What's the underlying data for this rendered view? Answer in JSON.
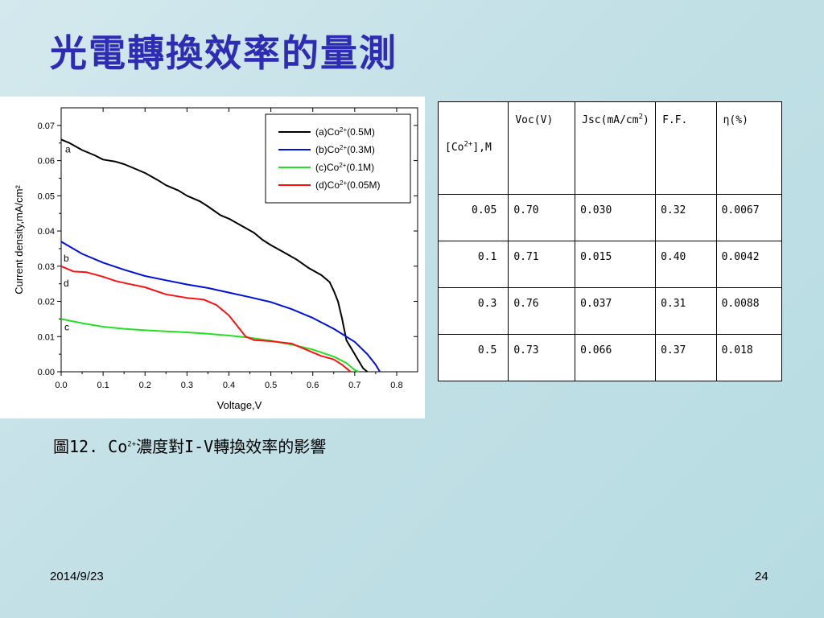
{
  "slide": {
    "title": "光電轉換效率的量測",
    "caption": {
      "prefix": "圖12. Co",
      "sup": "2+",
      "suffix": "濃度對I-V轉換效率的影響"
    },
    "footer_date": "2014/9/23",
    "page_number": "24"
  },
  "table": {
    "headers": [
      {
        "pre": "[Co",
        "sup": "2+",
        "post": "],M"
      },
      {
        "pre": "Voc(V)",
        "sup": "",
        "post": ""
      },
      {
        "pre": "Jsc(mA/cm",
        "sup": "2",
        "post": ")"
      },
      {
        "pre": "F.F.",
        "sup": "",
        "post": ""
      },
      {
        "pre": "η(%)",
        "sup": "",
        "post": ""
      }
    ],
    "rows": [
      [
        "0.05",
        "0.70",
        "0.030",
        "0.32",
        "0.0067"
      ],
      [
        "0.1",
        "0.71",
        "0.015",
        "0.40",
        "0.0042"
      ],
      [
        "0.3",
        "0.76",
        "0.037",
        "0.31",
        "0.0088"
      ],
      [
        "0.5",
        "0.73",
        "0.066",
        "0.37",
        "0.018"
      ]
    ]
  },
  "chart_data": {
    "type": "line",
    "title": "",
    "xlabel": "Voltage,V",
    "ylabel": "Current density,mA/cm²",
    "xlim": [
      0.0,
      0.85
    ],
    "ylim": [
      0.0,
      0.075
    ],
    "x_ticks": [
      "0.0",
      "0.1",
      "0.2",
      "0.3",
      "0.4",
      "0.5",
      "0.6",
      "0.7",
      "0.8"
    ],
    "y_ticks": [
      "0.00",
      "0.01",
      "0.02",
      "0.03",
      "0.04",
      "0.05",
      "0.06",
      "0.07"
    ],
    "grid": false,
    "legend_position": "top-right",
    "series": [
      {
        "name": "(a)Co2+(0.5M)",
        "legend_pre": "(a)Co",
        "legend_sup": "2+",
        "legend_post": "(0.5M)",
        "curve_label": "a",
        "color": "#000000",
        "points": [
          [
            0.0,
            0.066
          ],
          [
            0.02,
            0.065
          ],
          [
            0.05,
            0.063
          ],
          [
            0.08,
            0.0615
          ],
          [
            0.1,
            0.0603
          ],
          [
            0.13,
            0.0597
          ],
          [
            0.15,
            0.059
          ],
          [
            0.18,
            0.0575
          ],
          [
            0.2,
            0.0565
          ],
          [
            0.23,
            0.0545
          ],
          [
            0.25,
            0.053
          ],
          [
            0.28,
            0.0515
          ],
          [
            0.3,
            0.05
          ],
          [
            0.33,
            0.0485
          ],
          [
            0.35,
            0.047
          ],
          [
            0.38,
            0.0445
          ],
          [
            0.4,
            0.0435
          ],
          [
            0.43,
            0.0415
          ],
          [
            0.46,
            0.0395
          ],
          [
            0.48,
            0.0375
          ],
          [
            0.5,
            0.036
          ],
          [
            0.53,
            0.034
          ],
          [
            0.56,
            0.032
          ],
          [
            0.59,
            0.0295
          ],
          [
            0.62,
            0.0275
          ],
          [
            0.64,
            0.0255
          ],
          [
            0.65,
            0.023
          ],
          [
            0.66,
            0.02
          ],
          [
            0.67,
            0.015
          ],
          [
            0.68,
            0.009
          ],
          [
            0.7,
            0.005
          ],
          [
            0.72,
            0.001
          ],
          [
            0.73,
            0.0
          ]
        ]
      },
      {
        "name": "(b)Co2+(0.3M)",
        "legend_pre": "(b)Co",
        "legend_sup": "2+",
        "legend_post": "(0.3M)",
        "curve_label": "b",
        "color": "#0010e0",
        "points": [
          [
            0.0,
            0.037
          ],
          [
            0.05,
            0.0335
          ],
          [
            0.1,
            0.031
          ],
          [
            0.15,
            0.029
          ],
          [
            0.2,
            0.0272
          ],
          [
            0.25,
            0.026
          ],
          [
            0.3,
            0.0248
          ],
          [
            0.35,
            0.0238
          ],
          [
            0.4,
            0.0225
          ],
          [
            0.45,
            0.0212
          ],
          [
            0.5,
            0.0198
          ],
          [
            0.55,
            0.0178
          ],
          [
            0.6,
            0.0153
          ],
          [
            0.65,
            0.0122
          ],
          [
            0.7,
            0.0085
          ],
          [
            0.73,
            0.005
          ],
          [
            0.75,
            0.002
          ],
          [
            0.76,
            0.0
          ]
        ]
      },
      {
        "name": "(c)Co2+(0.1M)",
        "legend_pre": "(c)Co",
        "legend_sup": "2+",
        "legend_post": "(0.1M)",
        "curve_label": "c",
        "color": "#22e022",
        "points": [
          [
            0.0,
            0.015
          ],
          [
            0.05,
            0.0138
          ],
          [
            0.1,
            0.0128
          ],
          [
            0.15,
            0.0122
          ],
          [
            0.2,
            0.0118
          ],
          [
            0.25,
            0.0115
          ],
          [
            0.3,
            0.0112
          ],
          [
            0.35,
            0.0108
          ],
          [
            0.4,
            0.0103
          ],
          [
            0.45,
            0.0097
          ],
          [
            0.5,
            0.0088
          ],
          [
            0.55,
            0.0077
          ],
          [
            0.6,
            0.0063
          ],
          [
            0.65,
            0.0043
          ],
          [
            0.68,
            0.0025
          ],
          [
            0.7,
            0.0005
          ],
          [
            0.71,
            0.0
          ]
        ]
      },
      {
        "name": "(d)Co2+(0.05M)",
        "legend_pre": "(d)Co",
        "legend_sup": "2+",
        "legend_post": "(0.05M)",
        "curve_label": "d",
        "color": "#ff1010",
        "points": [
          [
            0.0,
            0.03
          ],
          [
            0.03,
            0.0285
          ],
          [
            0.06,
            0.0283
          ],
          [
            0.1,
            0.027
          ],
          [
            0.13,
            0.0258
          ],
          [
            0.16,
            0.025
          ],
          [
            0.2,
            0.024
          ],
          [
            0.25,
            0.022
          ],
          [
            0.3,
            0.021
          ],
          [
            0.34,
            0.0205
          ],
          [
            0.37,
            0.019
          ],
          [
            0.4,
            0.016
          ],
          [
            0.42,
            0.013
          ],
          [
            0.44,
            0.01
          ],
          [
            0.46,
            0.009
          ],
          [
            0.5,
            0.0087
          ],
          [
            0.55,
            0.008
          ],
          [
            0.58,
            0.0065
          ],
          [
            0.62,
            0.0045
          ],
          [
            0.65,
            0.0035
          ],
          [
            0.67,
            0.002
          ],
          [
            0.69,
            0.0
          ]
        ]
      }
    ]
  }
}
